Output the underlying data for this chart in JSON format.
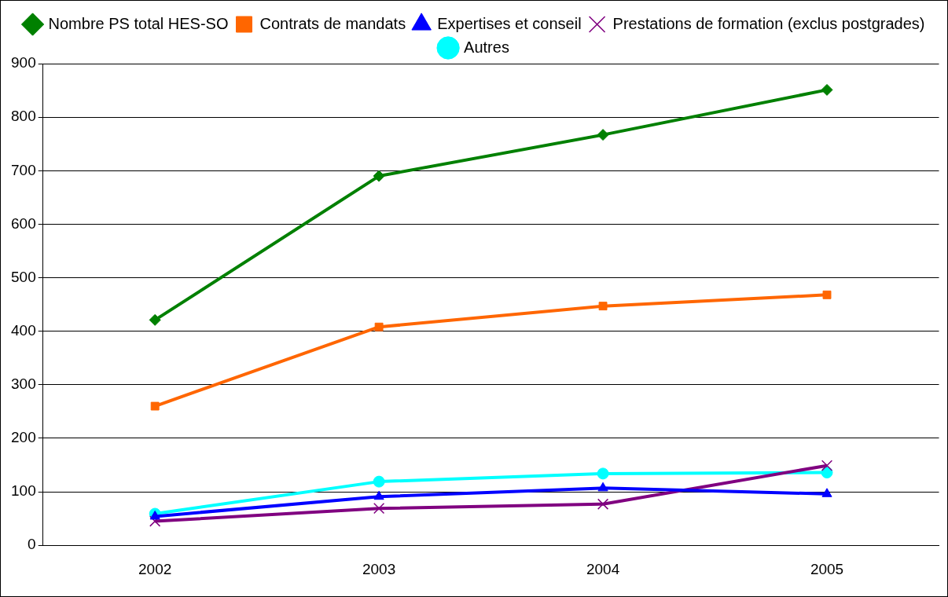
{
  "chart_data": {
    "type": "line",
    "categories": [
      "2002",
      "2003",
      "2004",
      "2005"
    ],
    "series": [
      {
        "name": "Nombre PS total HES-SO",
        "color": "#008000",
        "marker": "diamond",
        "values": [
          421,
          690,
          767,
          851
        ]
      },
      {
        "name": "Contrats de mandats",
        "color": "#ff6600",
        "marker": "square",
        "values": [
          260,
          408,
          447,
          468
        ]
      },
      {
        "name": "Expertises et conseil",
        "color": "#0000ff",
        "marker": "triangle",
        "values": [
          54,
          91,
          107,
          96
        ]
      },
      {
        "name": "Prestations de formation (exclus postgrades)",
        "color": "#800080",
        "marker": "cross",
        "values": [
          45,
          69,
          77,
          149
        ]
      },
      {
        "name": "Autres",
        "color": "#00ffff",
        "marker": "circle",
        "values": [
          59,
          119,
          134,
          136
        ]
      }
    ],
    "ylim": [
      0,
      900
    ],
    "yticks": [
      0,
      100,
      200,
      300,
      400,
      500,
      600,
      700,
      800,
      900
    ],
    "grid": "y",
    "legend": "top"
  }
}
